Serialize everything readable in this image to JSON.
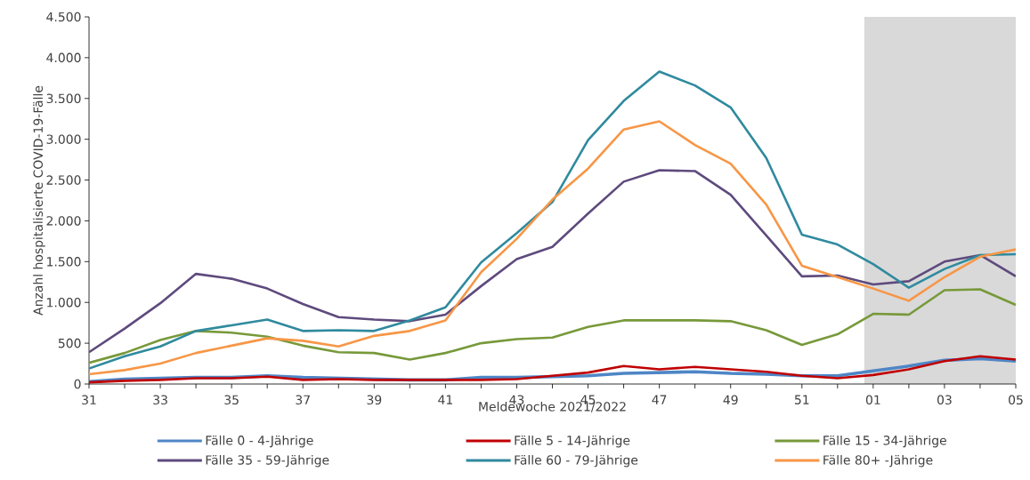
{
  "chart_data": {
    "type": "line",
    "xlabel": "Meldewoche 2021/2022",
    "ylabel": "Anzahl hospitalisierte COVID-19-Fälle",
    "categories": [
      "31",
      null,
      "33",
      null,
      "35",
      null,
      "37",
      null,
      "39",
      null,
      "41",
      null,
      "43",
      null,
      "45",
      null,
      "47",
      null,
      "49",
      null,
      "51",
      null,
      "01",
      null,
      "03",
      null,
      "05"
    ],
    "ylim": [
      0,
      4500
    ],
    "yticks": [
      0,
      500,
      {
        "value": 1000,
        "label": "1.000"
      },
      {
        "value": 1500,
        "label": "1.500"
      },
      {
        "value": 2000,
        "label": "2.000"
      },
      {
        "value": 2500,
        "label": "2.500"
      },
      {
        "value": 3000,
        "label": "3.000"
      },
      {
        "value": 3500,
        "label": "3.500"
      },
      {
        "value": 4000,
        "label": "4.000"
      },
      {
        "value": 4500,
        "label": "4.500"
      }
    ],
    "grid": false,
    "legend": "bottom",
    "marker": "none",
    "line_style": "solid",
    "series": [
      {
        "name": "Fälle 0 - 4-Jährige",
        "color": "#4e86c6",
        "values": [
          30,
          60,
          70,
          80,
          80,
          100,
          80,
          70,
          60,
          50,
          50,
          80,
          80,
          90,
          100,
          130,
          140,
          150,
          130,
          120,
          100,
          100,
          160,
          220,
          290,
          310,
          280
        ]
      },
      {
        "name": "Fälle 5 - 14-Jährige",
        "color": "#c00000",
        "values": [
          20,
          40,
          50,
          70,
          70,
          90,
          50,
          60,
          50,
          50,
          50,
          50,
          60,
          100,
          140,
          220,
          180,
          210,
          180,
          150,
          100,
          70,
          110,
          180,
          280,
          340,
          300
        ]
      },
      {
        "name": "Fälle 15 - 34-Jährige",
        "color": "#77993a",
        "values": [
          260,
          380,
          540,
          650,
          630,
          580,
          470,
          390,
          380,
          300,
          380,
          500,
          550,
          570,
          700,
          780,
          780,
          780,
          770,
          660,
          480,
          610,
          860,
          850,
          1150,
          1160,
          970
        ]
      },
      {
        "name": "Fälle 35 - 59-Jährige",
        "color": "#5e4a7d",
        "values": [
          390,
          680,
          990,
          1350,
          1290,
          1170,
          980,
          820,
          790,
          770,
          850,
          1200,
          1530,
          1680,
          2090,
          2480,
          2620,
          2610,
          2320,
          1820,
          1320,
          1330,
          1220,
          1260,
          1500,
          1580,
          1320
        ]
      },
      {
        "name": "Fälle 60 - 79-Jährige",
        "color": "#2f8a9e",
        "values": [
          190,
          340,
          460,
          650,
          720,
          790,
          650,
          660,
          650,
          780,
          940,
          1490,
          1850,
          2230,
          2990,
          3470,
          3830,
          3660,
          3390,
          2770,
          1830,
          1710,
          1470,
          1180,
          1410,
          1580,
          1590
        ]
      },
      {
        "name": "Fälle 80+ -Jährige",
        "color": "#f79646",
        "values": [
          120,
          170,
          250,
          380,
          470,
          560,
          530,
          460,
          590,
          650,
          780,
          1370,
          1780,
          2260,
          2640,
          3120,
          3220,
          2930,
          2700,
          2200,
          1450,
          1310,
          1170,
          1020,
          1310,
          1560,
          1650
        ]
      }
    ]
  }
}
